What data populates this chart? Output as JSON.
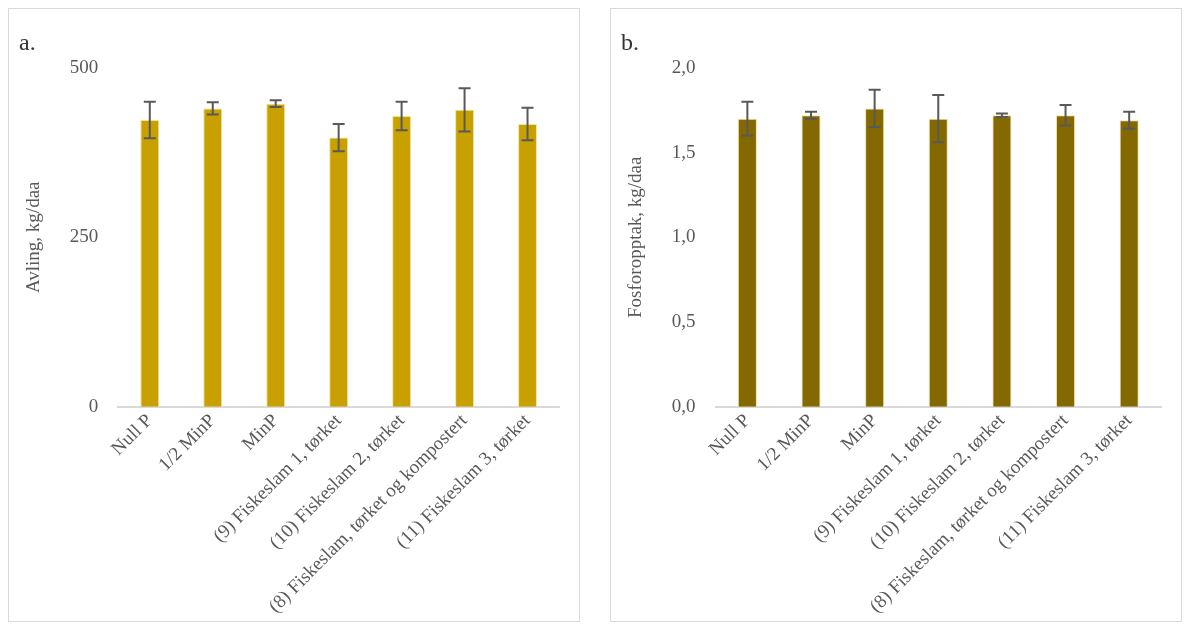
{
  "chart_data": [
    {
      "type": "bar",
      "title": "a.",
      "ylabel": "Avling, kg/daa",
      "categories": [
        "Null P",
        "1/2 MinP",
        "MinP",
        "(9) Fiskeslam 1, tørket",
        "(10) Fiskeslam 2, tørket",
        "(8) Fiskeslam, tørket og kompostert",
        "(11) Fiskeslam 3, tørket"
      ],
      "values": [
        423,
        440,
        447,
        397,
        429,
        438,
        417
      ],
      "errors": [
        27,
        9,
        5,
        20,
        21,
        32,
        24
      ],
      "color": "#c8a000",
      "ylim": [
        0,
        500
      ],
      "yticks": [
        0,
        250,
        500
      ],
      "grid": false,
      "legend": false
    },
    {
      "type": "bar",
      "title": "b.",
      "ylabel": "Fosforopptak, kg/daa",
      "categories": [
        "Null P",
        "1/2 MinP",
        "MinP",
        "(9) Fiskeslam 1, tørket",
        "(10) Fiskeslam 2, tørket",
        "(8) Fiskeslam, tørket og kompostert",
        "(11) Fiskeslam 3, tørket"
      ],
      "values": [
        1.7,
        1.72,
        1.76,
        1.7,
        1.72,
        1.72,
        1.69
      ],
      "errors": [
        0.1,
        0.02,
        0.11,
        0.14,
        0.01,
        0.06,
        0.05
      ],
      "color": "#836900",
      "ylim": [
        0,
        2
      ],
      "yticks": [
        {
          "value": 0,
          "label": "0,0"
        },
        {
          "value": 0.5,
          "label": "0,5"
        },
        {
          "value": 1,
          "label": "1,0"
        },
        {
          "value": 1.5,
          "label": "1,5"
        },
        {
          "value": 2,
          "label": "2,0"
        }
      ],
      "grid": false,
      "legend": false
    }
  ]
}
